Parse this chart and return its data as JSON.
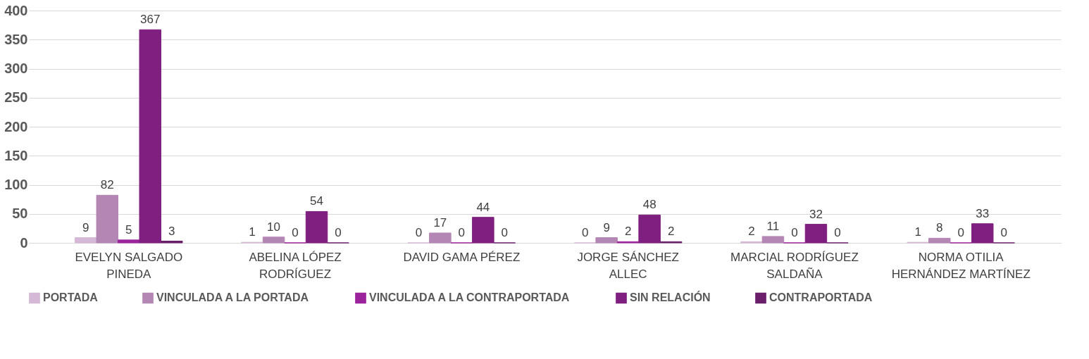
{
  "chart_data": {
    "type": "bar",
    "categories": [
      "EVELYN SALGADO PINEDA",
      "ABELINA LÓPEZ RODRÍGUEZ",
      "DAVID GAMA PÉREZ",
      "JORGE SÁNCHEZ ALLEC",
      "MARCIAL RODRÍGUEZ SALDAÑA",
      "NORMA OTILIA HERNÁNDEZ MARTÍNEZ"
    ],
    "series": [
      {
        "name": "PORTADA",
        "color": "#d5b8d5",
        "values": [
          9,
          1,
          0,
          0,
          2,
          1
        ]
      },
      {
        "name": "VINCULADA A LA PORTADA",
        "color": "#b386b3",
        "values": [
          82,
          10,
          17,
          9,
          11,
          8
        ]
      },
      {
        "name": "VINCULADA A LA CONTRAPORTADA",
        "color": "#9b239b",
        "values": [
          5,
          0,
          0,
          2,
          0,
          0
        ]
      },
      {
        "name": "SIN RELACIÓN",
        "color": "#7f1f7f",
        "values": [
          367,
          54,
          44,
          48,
          32,
          33
        ]
      },
      {
        "name": "CONTRAPORTADA",
        "color": "#6b1f6b",
        "values": [
          3,
          0,
          0,
          2,
          0,
          0
        ]
      }
    ],
    "ylim": [
      0,
      400
    ],
    "yticks": [
      0,
      50,
      100,
      150,
      200,
      250,
      300,
      350,
      400
    ],
    "grid": "y",
    "legend": "bottom",
    "data_labels": true
  }
}
